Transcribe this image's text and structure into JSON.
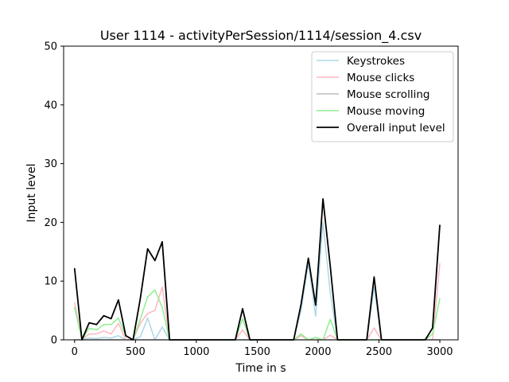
{
  "chart_data": {
    "type": "line",
    "title": "User 1114 - activityPerSession/1114/session_4.csv",
    "xlabel": "Time in s",
    "ylabel": "Input level",
    "xlim": [
      -90,
      3150
    ],
    "ylim": [
      0,
      50
    ],
    "xticks": [
      0,
      500,
      1000,
      1500,
      2000,
      2500,
      3000
    ],
    "yticks": [
      0,
      10,
      20,
      30,
      40,
      50
    ],
    "grid": false,
    "legend_position": "top-right",
    "x": [
      0,
      60,
      120,
      180,
      240,
      300,
      360,
      420,
      480,
      540,
      600,
      660,
      720,
      780,
      840,
      900,
      960,
      1020,
      1080,
      1140,
      1200,
      1260,
      1320,
      1380,
      1440,
      1500,
      1560,
      1620,
      1680,
      1740,
      1800,
      1860,
      1920,
      1980,
      2040,
      2100,
      2160,
      2220,
      2280,
      2340,
      2400,
      2460,
      2520,
      2580,
      2640,
      2700,
      2760,
      2820,
      2880,
      2940,
      3000
    ],
    "series": [
      {
        "name": "Keystrokes",
        "color": "#add8e6",
        "values": [
          0,
          0,
          0.3,
          0.2,
          0.4,
          0.3,
          0.7,
          0,
          0,
          0.5,
          3.7,
          0,
          2.2,
          0,
          0,
          0,
          0,
          0,
          0,
          0,
          0,
          0,
          0,
          0,
          0,
          0,
          0,
          0,
          0,
          0,
          0,
          5.0,
          13.0,
          4.0,
          20.0,
          8.0,
          0,
          0,
          0,
          0,
          0,
          9.0,
          0,
          0,
          0,
          0,
          0,
          0,
          0,
          0,
          0
        ]
      },
      {
        "name": "Mouse clicks",
        "color": "#ffb6c1",
        "values": [
          6.3,
          0,
          1.0,
          1.0,
          1.5,
          1.0,
          2.8,
          0,
          0,
          2.8,
          4.5,
          5.0,
          9.0,
          0,
          0,
          0,
          0,
          0,
          0,
          0,
          0,
          0,
          0,
          1.7,
          0,
          0,
          0,
          0,
          0,
          0,
          0,
          0.7,
          0,
          0,
          0,
          0.8,
          0,
          0,
          0,
          0,
          0,
          2.0,
          0,
          0,
          0,
          0,
          0,
          0,
          0,
          0,
          13.0
        ]
      },
      {
        "name": "Mouse scrolling",
        "color": "#bebebe",
        "values": [
          0,
          0,
          0,
          0,
          0,
          0,
          0,
          0,
          0,
          0,
          0,
          0,
          0,
          0,
          0,
          0,
          0,
          0,
          0,
          0,
          0,
          0,
          0,
          0,
          0,
          0,
          0,
          0,
          0,
          0,
          0,
          0,
          0,
          0,
          0,
          0,
          0,
          0,
          0,
          0,
          0,
          0,
          0,
          0,
          0,
          0,
          0,
          0,
          0,
          0,
          0
        ]
      },
      {
        "name": "Mouse moving",
        "color": "#90ee90",
        "values": [
          5.5,
          0,
          2.0,
          1.7,
          2.6,
          2.6,
          3.7,
          0.7,
          0,
          3.5,
          7.3,
          8.5,
          5.5,
          0,
          0,
          0,
          0,
          0,
          0,
          0,
          0,
          0,
          0,
          3.6,
          0,
          0,
          0,
          0,
          0,
          0,
          0,
          1.0,
          0,
          0.4,
          0,
          3.5,
          0,
          0,
          0,
          0,
          0,
          0,
          0,
          0,
          0,
          0,
          0,
          0,
          0,
          1.0,
          7.0
        ]
      },
      {
        "name": "Overall input level",
        "color": "#000000",
        "values": [
          12.1,
          0,
          2.9,
          2.6,
          4.1,
          3.6,
          6.8,
          0.7,
          0,
          7.0,
          15.5,
          13.5,
          16.7,
          0,
          0,
          0,
          0,
          0,
          0,
          0,
          0,
          0,
          0,
          5.3,
          0,
          0,
          0,
          0,
          0,
          0,
          0,
          6.0,
          13.9,
          5.9,
          24.0,
          12.5,
          0,
          0,
          0,
          0,
          0,
          10.7,
          0,
          0,
          0,
          0,
          0,
          0,
          0,
          2.0,
          19.5
        ]
      }
    ]
  }
}
